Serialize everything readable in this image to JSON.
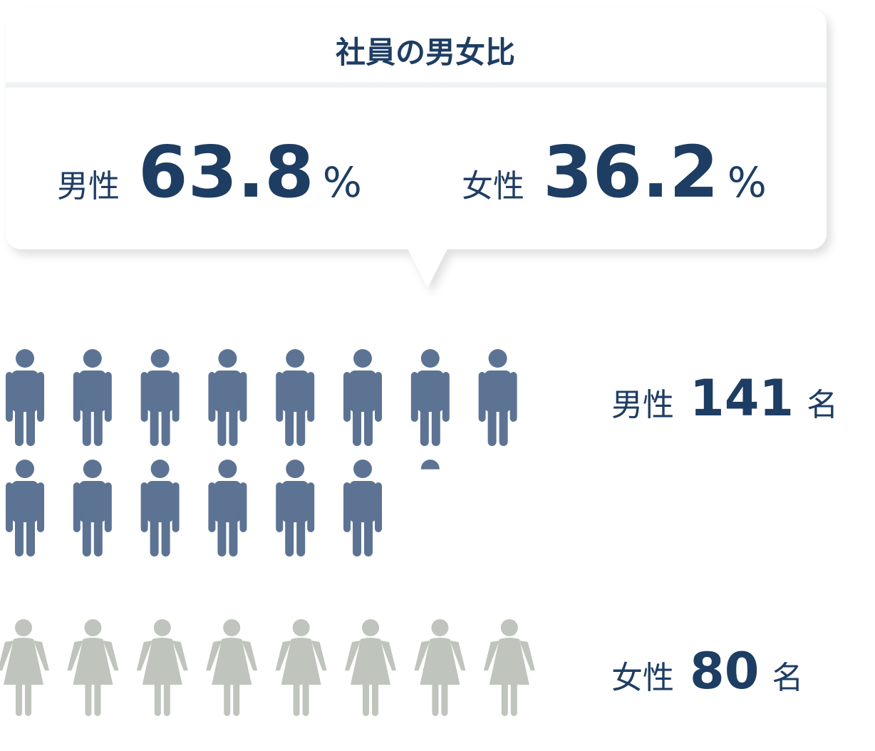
{
  "chart_data": {
    "type": "pictogram",
    "title": "社員の男女比",
    "percent_unit": "%",
    "count_unit": "名",
    "series": [
      {
        "name": "男性",
        "color": "#5d7393",
        "percent": 63.8,
        "count": 141
      },
      {
        "name": "女性",
        "color": "#bfc4bc",
        "percent": 36.2,
        "count": 80
      }
    ]
  }
}
